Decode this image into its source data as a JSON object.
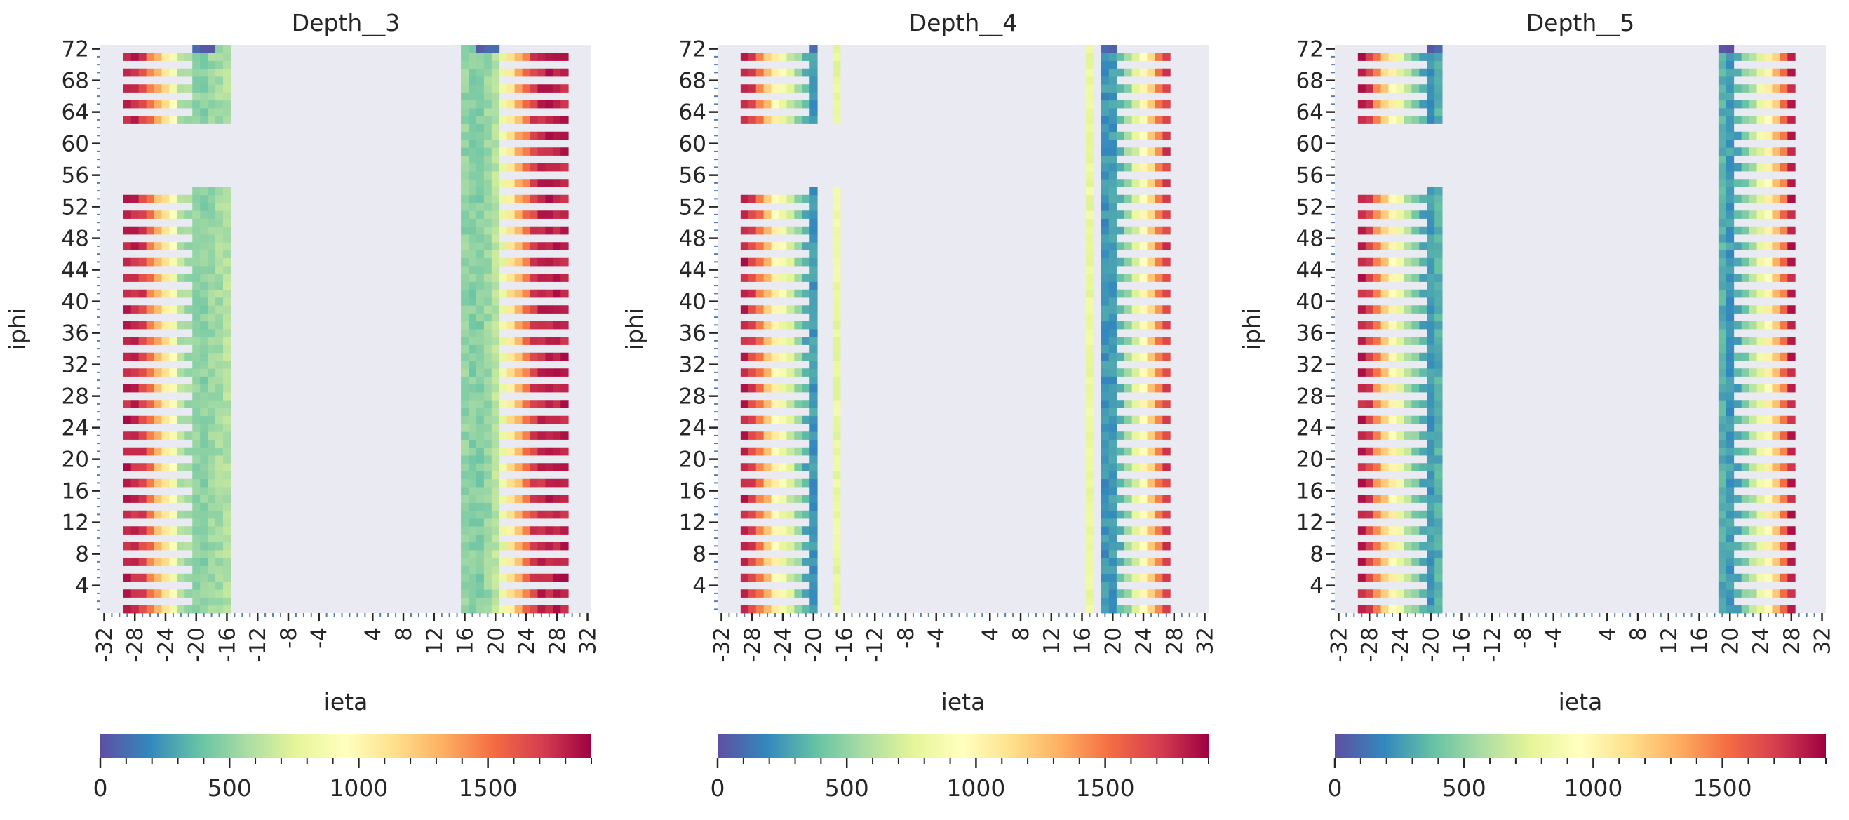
{
  "chart_data": [
    {
      "type": "heatmap",
      "title": "Depth__3",
      "xlabel": "ieta",
      "ylabel": "iphi",
      "x_tick_labels": [
        "-32",
        "-28",
        "-24",
        "-20",
        "-16",
        "-12",
        "-8",
        "-4",
        "4",
        "8",
        "12",
        "16",
        "20",
        "24",
        "28",
        "32"
      ],
      "y_tick_labels": [
        "72",
        "68",
        "64",
        "60",
        "56",
        "52",
        "48",
        "44",
        "40",
        "36",
        "32",
        "28",
        "24",
        "20",
        "16",
        "12",
        "8",
        "4"
      ],
      "ieta_range": [
        -32,
        32
      ],
      "iphi_range": [
        1,
        72
      ],
      "colorbar": {
        "min": 0,
        "max": 1900,
        "ticks": [
          "0",
          "500",
          "1000",
          "1500"
        ],
        "colormap": "Spectral_r"
      },
      "description_of_values": {
        "negative_side_ieta": [
          -29,
          -16
        ],
        "positive_side_ieta": [
          16,
          29
        ],
        "gap_iphi_negative_side": [
          55,
          62
        ],
        "pattern": "odd iphi rows filled on ieta -29..-21 and 21..29; even rows only near |ieta| 16-20"
      },
      "profile_negative": [
        1800,
        1780,
        1700,
        1500,
        1300,
        1100,
        900,
        600,
        550,
        500,
        480,
        520,
        560,
        600
      ],
      "profile_positive": [
        500,
        470,
        460,
        520,
        620,
        800,
        1100,
        1300,
        1500,
        1700,
        1780,
        1800,
        1800,
        1800
      ],
      "top_cells_value": 0
    },
    {
      "type": "heatmap",
      "title": "Depth__4",
      "xlabel": "ieta",
      "ylabel": "iphi",
      "x_tick_labels": [
        "-32",
        "-28",
        "-24",
        "-20",
        "-16",
        "-12",
        "-8",
        "-4",
        "4",
        "8",
        "12",
        "16",
        "20",
        "24",
        "28",
        "32"
      ],
      "y_tick_labels": [
        "72",
        "68",
        "64",
        "60",
        "56",
        "52",
        "48",
        "44",
        "40",
        "36",
        "32",
        "28",
        "24",
        "20",
        "16",
        "12",
        "8",
        "4"
      ],
      "ieta_range": [
        -32,
        32
      ],
      "iphi_range": [
        1,
        72
      ],
      "colorbar": {
        "min": 0,
        "max": 1900,
        "ticks": [
          "0",
          "500",
          "1000",
          "1500"
        ],
        "colormap": "Spectral_r"
      },
      "profile_negative": [
        1800,
        1700,
        1500,
        1250,
        1000,
        850,
        700,
        500,
        320,
        250,
        0,
        0,
        800,
        0
      ],
      "profile_positive": [
        0,
        800,
        0,
        230,
        250,
        330,
        520,
        750,
        950,
        1200,
        1450,
        1700,
        0,
        0
      ],
      "top_cells_value": 0
    },
    {
      "type": "heatmap",
      "title": "Depth__5",
      "xlabel": "ieta",
      "ylabel": "iphi",
      "x_tick_labels": [
        "-32",
        "-28",
        "-24",
        "-20",
        "-16",
        "-12",
        "-8",
        "-4",
        "4",
        "8",
        "12",
        "16",
        "20",
        "24",
        "28",
        "32"
      ],
      "y_tick_labels": [
        "72",
        "68",
        "64",
        "60",
        "56",
        "52",
        "48",
        "44",
        "40",
        "36",
        "32",
        "28",
        "24",
        "20",
        "16",
        "12",
        "8",
        "4"
      ],
      "ieta_range": [
        -32,
        32
      ],
      "iphi_range": [
        1,
        72
      ],
      "colorbar": {
        "min": 0,
        "max": 1900,
        "ticks": [
          "0",
          "500",
          "1000",
          "1500"
        ],
        "colormap": "Spectral_r"
      },
      "profile_negative": [
        1800,
        1700,
        1450,
        1200,
        1000,
        800,
        600,
        450,
        300,
        250,
        320,
        0,
        0,
        0
      ],
      "profile_positive": [
        0,
        0,
        0,
        320,
        250,
        300,
        450,
        600,
        800,
        1000,
        1250,
        1500,
        1800,
        0
      ],
      "top_cells_value": 0
    }
  ]
}
